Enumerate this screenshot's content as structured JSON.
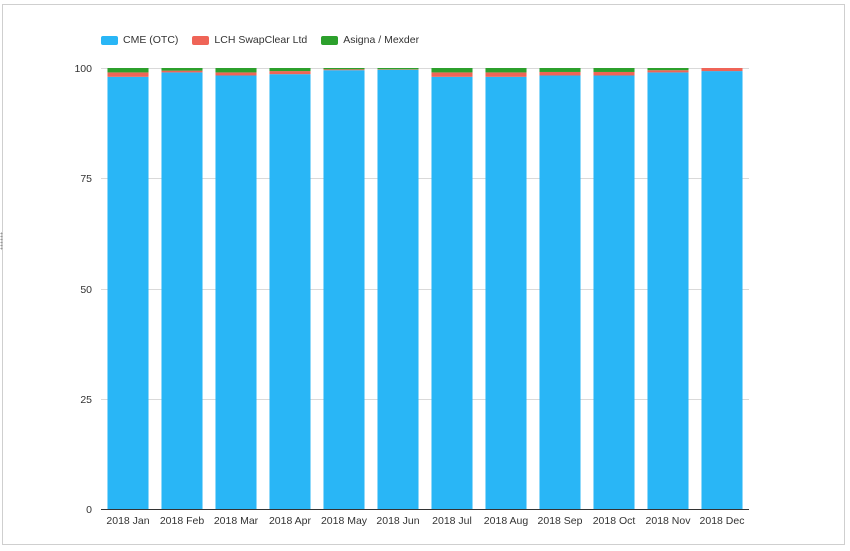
{
  "chart_data": {
    "type": "bar",
    "stacked": true,
    "categories": [
      "2018 Jan",
      "2018 Feb",
      "2018 Mar",
      "2018 Apr",
      "2018 May",
      "2018 Jun",
      "2018 Jul",
      "2018 Aug",
      "2018 Sep",
      "2018 Oct",
      "2018 Nov",
      "2018 Dec"
    ],
    "series": [
      {
        "name": "CME (OTC)",
        "color": "#29b6f6",
        "values": [
          98.0,
          99.0,
          98.3,
          98.6,
          99.5,
          99.6,
          98.0,
          98.0,
          98.3,
          98.3,
          99.0,
          99.3
        ]
      },
      {
        "name": "LCH SwapClear Ltd",
        "color": "#ef6457",
        "values": [
          1.0,
          0.4,
          0.7,
          0.7,
          0.2,
          0.1,
          1.0,
          1.0,
          0.8,
          0.8,
          0.5,
          0.7
        ]
      },
      {
        "name": "Asigna / Mexder",
        "color": "#2ca02c",
        "values": [
          1.0,
          0.6,
          1.0,
          0.7,
          0.3,
          0.3,
          1.0,
          1.0,
          0.9,
          0.9,
          0.5,
          0.0
        ]
      }
    ],
    "y_ticks": [
      0,
      25,
      50,
      75,
      100
    ],
    "ylim": [
      0,
      100
    ],
    "grid": true,
    "legend_position": "top-left"
  }
}
